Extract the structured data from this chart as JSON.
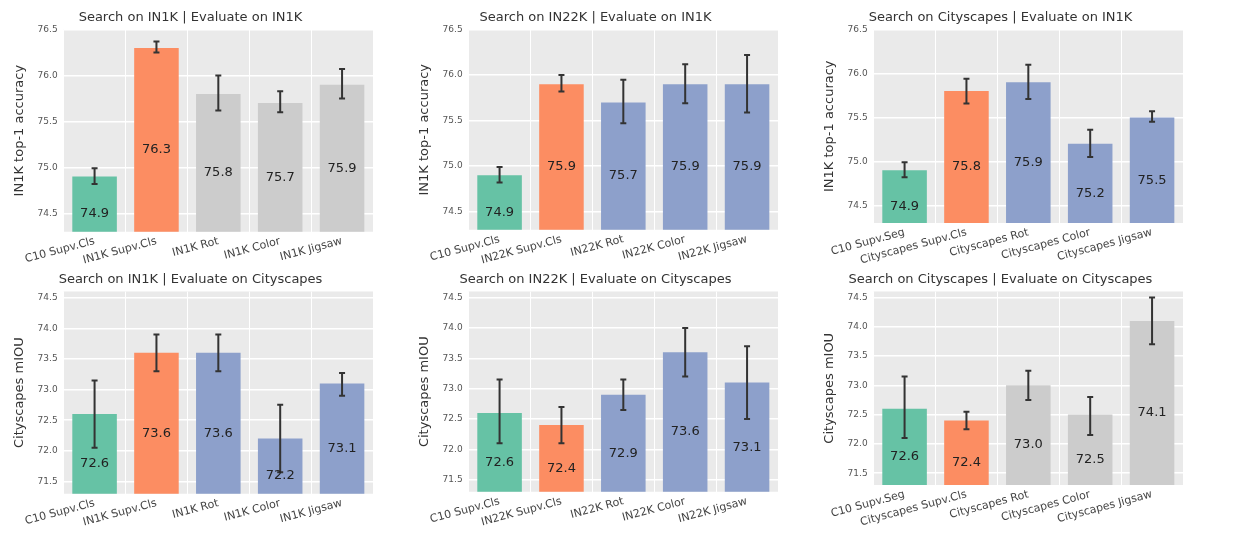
{
  "chart_data": [
    {
      "type": "bar",
      "title": "Search on IN1K | Evaluate on IN1K",
      "ylabel": "IN1K top-1 accuracy",
      "categories": [
        "C10 Supv.Cls",
        "IN1K Supv.Cls",
        "IN1K Rot",
        "IN1K Color",
        "IN1K Jigsaw"
      ],
      "values": [
        74.9,
        76.3,
        75.8,
        75.7,
        75.9
      ],
      "colors": [
        "#66c2a5",
        "#fc8d62",
        "#cccccc",
        "#cccccc",
        "#cccccc"
      ],
      "errors": [
        [
          74.82,
          74.99
        ],
        [
          76.25,
          76.37
        ],
        [
          75.62,
          76.0
        ],
        [
          75.6,
          75.83
        ],
        [
          75.75,
          76.07
        ]
      ],
      "ylim": [
        74.3,
        76.5
      ],
      "yticks": [
        74.5,
        {
          "value": 75,
          "label": "75.0"
        },
        75.5,
        {
          "value": 76,
          "label": "76.0"
        },
        76.5
      ],
      "grid": true,
      "data_labels": true
    },
    {
      "type": "bar",
      "title": "Search on IN22K | Evaluate on IN1K",
      "ylabel": "IN1K top-1 accuracy",
      "categories": [
        "C10 Supv.Cls",
        "IN22K Supv.Cls",
        "IN22K Rot",
        "IN22K Color",
        "IN22K Jigsaw"
      ],
      "values": [
        74.9,
        75.9,
        75.7,
        75.9,
        75.9
      ],
      "colors": [
        "#66c2a5",
        "#fc8d62",
        "#8da0cb",
        "#8da0cb",
        "#8da0cb"
      ],
      "errors": [
        [
          74.82,
          74.99
        ],
        [
          75.82,
          76.0
        ],
        [
          75.47,
          75.95
        ],
        [
          75.69,
          76.12
        ],
        [
          75.59,
          76.22
        ]
      ],
      "ylim": [
        74.3,
        76.5
      ],
      "yticks": [
        74.5,
        {
          "value": 75,
          "label": "75.0"
        },
        75.5,
        {
          "value": 76,
          "label": "76.0"
        },
        76.5
      ],
      "grid": true,
      "data_labels": true
    },
    {
      "type": "bar",
      "title": "Search on Cityscapes | Evaluate on IN1K",
      "ylabel": "IN1K top-1 accuracy",
      "categories": [
        "C10 Supv.Seg",
        "Cityscapes Supv.Cls",
        "Cityscapes Rot",
        "Cityscapes Color",
        "Cityscapes Jigsaw"
      ],
      "values": [
        74.9,
        75.8,
        75.9,
        75.2,
        75.5
      ],
      "colors": [
        "#66c2a5",
        "#fc8d62",
        "#8da0cb",
        "#8da0cb",
        "#8da0cb"
      ],
      "errors": [
        [
          74.82,
          74.99
        ],
        [
          75.66,
          75.94
        ],
        [
          75.71,
          76.1
        ],
        [
          75.05,
          75.36
        ],
        [
          75.45,
          75.57
        ]
      ],
      "ylim": [
        74.3,
        76.5
      ],
      "yticks": [
        74.5,
        {
          "value": 75,
          "label": "75.0"
        },
        75.5,
        {
          "value": 76,
          "label": "76.0"
        },
        76.5
      ],
      "grid": true,
      "data_labels": true
    },
    {
      "type": "bar",
      "title": "Search on IN1K | Evaluate on Cityscapes",
      "ylabel": "Cityscapes mIOU",
      "categories": [
        "C10 Supv.Cls",
        "IN1K Supv.Cls",
        "IN1K Rot",
        "IN1K Color",
        "IN1K Jigsaw"
      ],
      "values": [
        72.6,
        73.6,
        73.6,
        72.2,
        73.1
      ],
      "colors": [
        "#66c2a5",
        "#fc8d62",
        "#8da0cb",
        "#8da0cb",
        "#8da0cb"
      ],
      "errors": [
        [
          72.05,
          73.15
        ],
        [
          73.3,
          73.9
        ],
        [
          73.3,
          73.9
        ],
        [
          71.65,
          72.75
        ],
        [
          72.9,
          73.27
        ]
      ],
      "ylim": [
        71.3,
        74.6
      ],
      "yticks": [
        71.5,
        {
          "value": 72,
          "label": "72.0"
        },
        72.5,
        {
          "value": 73,
          "label": "73.0"
        },
        73.5,
        {
          "value": 74,
          "label": "74.0"
        },
        74.5
      ],
      "grid": true,
      "data_labels": true
    },
    {
      "type": "bar",
      "title": "Search on IN22K | Evaluate on Cityscapes",
      "ylabel": "Cityscapes mIOU",
      "categories": [
        "C10 Supv.Cls",
        "IN22K Supv.Cls",
        "IN22K Rot",
        "IN22K Color",
        "IN22K Jigsaw"
      ],
      "values": [
        72.6,
        72.4,
        72.9,
        73.6,
        73.1
      ],
      "colors": [
        "#66c2a5",
        "#fc8d62",
        "#8da0cb",
        "#8da0cb",
        "#8da0cb"
      ],
      "errors": [
        [
          72.1,
          73.15
        ],
        [
          72.1,
          72.7
        ],
        [
          72.65,
          73.15
        ],
        [
          73.2,
          74.0
        ],
        [
          72.5,
          73.7
        ]
      ],
      "ylim": [
        71.3,
        74.6
      ],
      "yticks": [
        71.5,
        {
          "value": 72,
          "label": "72.0"
        },
        72.5,
        {
          "value": 73,
          "label": "73.0"
        },
        73.5,
        {
          "value": 74,
          "label": "74.0"
        },
        74.5
      ],
      "grid": true,
      "data_labels": true
    },
    {
      "type": "bar",
      "title": "Search on Cityscapes | Evaluate on Cityscapes",
      "ylabel": "Cityscapes mIOU",
      "categories": [
        "C10 Supv.Seg",
        "Cityscapes Supv.Cls",
        "Cityscapes Rot",
        "Cityscapes Color",
        "Cityscapes Jigsaw"
      ],
      "values": [
        72.6,
        72.4,
        73.0,
        72.5,
        74.1
      ],
      "colors": [
        "#66c2a5",
        "#fc8d62",
        "#cccccc",
        "#cccccc",
        "#cccccc"
      ],
      "errors": [
        [
          72.1,
          73.15
        ],
        [
          72.25,
          72.55
        ],
        [
          72.75,
          73.25
        ],
        [
          72.15,
          72.8
        ],
        [
          73.7,
          74.5
        ]
      ],
      "ylim": [
        71.3,
        74.6
      ],
      "yticks": [
        71.5,
        {
          "value": 72,
          "label": "72.0"
        },
        72.5,
        {
          "value": 73,
          "label": "73.0"
        },
        73.5,
        {
          "value": 74,
          "label": "74.0"
        },
        74.5
      ],
      "grid": true,
      "value_labels": [
        "72.6",
        "72.4",
        "73.0",
        "72.5",
        "74.1"
      ]
    }
  ]
}
